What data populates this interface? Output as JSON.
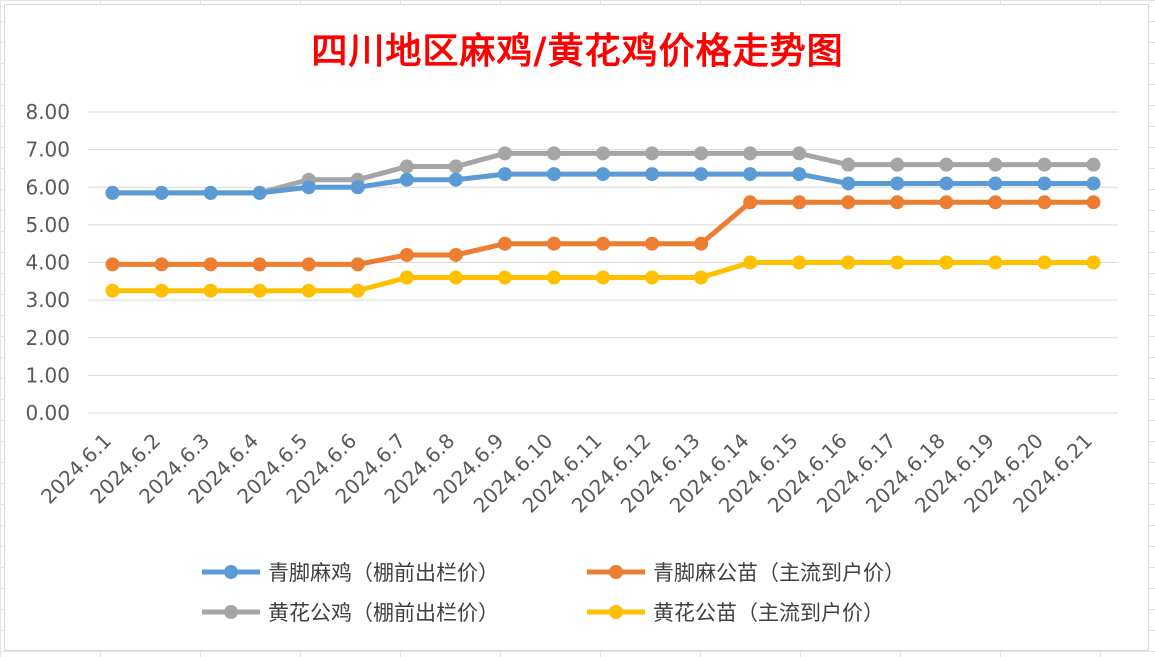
{
  "chart_data": {
    "type": "line",
    "title": "四川地区麻鸡/黄花鸡价格走势图",
    "x": [
      "2024.6.1",
      "2024.6.2",
      "2024.6.3",
      "2024.6.4",
      "2024.6.5",
      "2024.6.6",
      "2024.6.7",
      "2024.6.8",
      "2024.6.9",
      "2024.6.10",
      "2024.6.11",
      "2024.6.12",
      "2024.6.13",
      "2024.6.14",
      "2024.6.15",
      "2024.6.16",
      "2024.6.17",
      "2024.6.18",
      "2024.6.19",
      "2024.6.20",
      "2024.6.21"
    ],
    "ylim": [
      0,
      8
    ],
    "yticks": [
      "0.00",
      "1.00",
      "2.00",
      "3.00",
      "4.00",
      "5.00",
      "6.00",
      "7.00",
      "8.00"
    ],
    "grid": true,
    "legend_position": "bottom",
    "series": [
      {
        "name": "青脚麻鸡（棚前出栏价）",
        "color": "#5b9bd5",
        "values": [
          5.85,
          5.85,
          5.85,
          5.85,
          6.0,
          6.0,
          6.2,
          6.2,
          6.35,
          6.35,
          6.35,
          6.35,
          6.35,
          6.35,
          6.35,
          6.1,
          6.1,
          6.1,
          6.1,
          6.1,
          6.1
        ]
      },
      {
        "name": "青脚麻公苗（主流到户价）",
        "color": "#ed7d31",
        "values": [
          3.95,
          3.95,
          3.95,
          3.95,
          3.95,
          3.95,
          4.2,
          4.2,
          4.5,
          4.5,
          4.5,
          4.5,
          4.5,
          5.6,
          5.6,
          5.6,
          5.6,
          5.6,
          5.6,
          5.6,
          5.6
        ]
      },
      {
        "name": "黄花公鸡（棚前出栏价）",
        "color": "#a5a5a5",
        "values": [
          5.85,
          5.85,
          5.85,
          5.85,
          6.2,
          6.2,
          6.55,
          6.55,
          6.9,
          6.9,
          6.9,
          6.9,
          6.9,
          6.9,
          6.9,
          6.6,
          6.6,
          6.6,
          6.6,
          6.6,
          6.6
        ]
      },
      {
        "name": "黄花公苗（主流到户价）",
        "color": "#ffc000",
        "values": [
          3.25,
          3.25,
          3.25,
          3.25,
          3.25,
          3.25,
          3.6,
          3.6,
          3.6,
          3.6,
          3.6,
          3.6,
          3.6,
          4.0,
          4.0,
          4.0,
          4.0,
          4.0,
          4.0,
          4.0,
          4.0
        ]
      }
    ]
  }
}
